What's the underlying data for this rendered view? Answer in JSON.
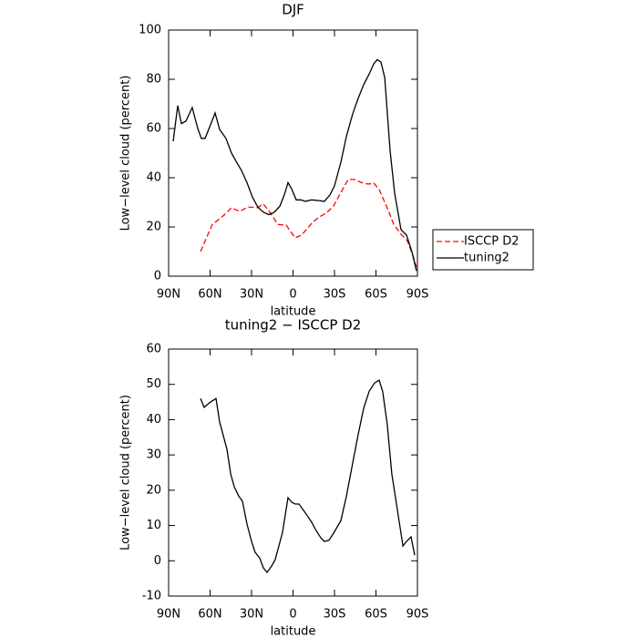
{
  "chart_data": [
    {
      "type": "line",
      "title": "DJF",
      "x_label": "latitude",
      "y_label": "Low−level cloud (percent)",
      "xlim": [
        90,
        -90
      ],
      "xticks": [
        {
          "value": 90,
          "label": "90N"
        },
        {
          "value": 60,
          "label": "60N"
        },
        {
          "value": 30,
          "label": "30N"
        },
        0,
        {
          "value": -30,
          "label": "30S"
        },
        {
          "value": -60,
          "label": "60S"
        },
        {
          "value": -90,
          "label": "90S"
        }
      ],
      "ylim": [
        0,
        100
      ],
      "yticks": [
        0,
        20,
        40,
        60,
        80,
        100
      ],
      "legend": "outside-right",
      "series": [
        {
          "name": "ISCCP D2",
          "color": "#ff0000",
          "linestyle": "dashed",
          "x": [
            66.9,
            63,
            58.4,
            53.1,
            49.1,
            44.5,
            38.6,
            32.6,
            26,
            21.4,
            16.8,
            10.9,
            4.9,
            1.6,
            -1.6,
            -6.2,
            -10.2,
            -14.2,
            -18.8,
            -24,
            -29.3,
            -34.6,
            -39.9,
            -44.5,
            -49.1,
            -54.4,
            -58.4,
            -62.3,
            -67.6,
            -72.9,
            -78.1,
            -82.7,
            -86.7,
            -89.3
          ],
          "values": [
            10,
            15,
            21,
            23.3,
            25.2,
            27.8,
            26.3,
            28.1,
            27.8,
            29.3,
            26,
            21,
            20.7,
            18,
            15.6,
            16.7,
            19.3,
            21.9,
            24,
            25.6,
            28.5,
            34,
            39.3,
            39.3,
            38.1,
            37.4,
            37.8,
            35.2,
            28.5,
            21,
            17,
            14.4,
            8.5,
            3.7
          ]
        },
        {
          "name": "tuning2",
          "color": "#000000",
          "linestyle": "solid",
          "x": [
            86.7,
            83.4,
            80.8,
            77.5,
            72.9,
            68.9,
            66.3,
            63.6,
            59.7,
            56.4,
            53.1,
            48.5,
            44.5,
            41.2,
            37.3,
            33.3,
            29.3,
            25.4,
            21.4,
            17.4,
            13.5,
            9.5,
            6.3,
            3.6,
            1,
            -2.3,
            -5.6,
            -8.9,
            -13.5,
            -18.8,
            -22.7,
            -26.7,
            -30,
            -34.6,
            -38.6,
            -43.2,
            -47.1,
            -51.1,
            -55.1,
            -58.4,
            -61,
            -63.6,
            -66.3,
            -70.2,
            -73.5,
            -78.1,
            -82.1,
            -86,
            -89.3
          ],
          "values": [
            54.8,
            69.3,
            62,
            63,
            68.5,
            60,
            56,
            56,
            61.5,
            66.3,
            59.6,
            56,
            50,
            46.7,
            43,
            38,
            32,
            28,
            26,
            25,
            26,
            28.5,
            33,
            38,
            35.5,
            31,
            31,
            30.4,
            31,
            30.7,
            30.4,
            33,
            36.7,
            46.3,
            56.7,
            66,
            72.2,
            77.8,
            82.2,
            86.3,
            88,
            87,
            80.7,
            51,
            33.7,
            18.9,
            16.7,
            10,
            2.2
          ]
        }
      ]
    },
    {
      "type": "line",
      "title": "tuning2 − ISCCP D2",
      "x_label": "latitude",
      "y_label": "Low−level cloud (percent)",
      "xlim": [
        90,
        -90
      ],
      "xticks": [
        {
          "value": 90,
          "label": "90N"
        },
        {
          "value": 60,
          "label": "60N"
        },
        {
          "value": 30,
          "label": "30N"
        },
        0,
        {
          "value": -30,
          "label": "30S"
        },
        {
          "value": -60,
          "label": "60S"
        },
        {
          "value": -90,
          "label": "90S"
        }
      ],
      "ylim": [
        -10,
        60
      ],
      "yticks": [
        -10,
        0,
        10,
        20,
        30,
        40,
        50,
        60
      ],
      "series": [
        {
          "color": "#000000",
          "linestyle": "solid",
          "x": [
            66.9,
            64.3,
            60.3,
            55.7,
            53.1,
            47.8,
            45.1,
            42.5,
            39.2,
            36.6,
            33.3,
            30,
            27.4,
            24.1,
            21.4,
            18.8,
            15.5,
            12.9,
            10.2,
            7.6,
            3.6,
            1,
            -1.6,
            -4.3,
            -9.6,
            -13.5,
            -16.2,
            -20.1,
            -22.7,
            -26,
            -29.3,
            -34.6,
            -38.6,
            -42.5,
            -47.1,
            -51.1,
            -55.1,
            -59,
            -62.3,
            -64.9,
            -68.2,
            -71.5,
            -74.8,
            -79.5,
            -82.1,
            -85.4,
            -88
          ],
          "values": [
            46,
            43.5,
            44.8,
            46,
            39.3,
            31.6,
            24.6,
            21,
            18.3,
            16.9,
            10.4,
            5.5,
            2.4,
            0.8,
            -2,
            -3.3,
            -1.5,
            0.3,
            4.2,
            8.1,
            17.9,
            16.6,
            16.1,
            16.1,
            13.2,
            10.9,
            8.9,
            6.5,
            5.5,
            5.8,
            7.8,
            11.4,
            18.2,
            26.4,
            35.7,
            43.2,
            48.1,
            50.4,
            51.2,
            47.9,
            38.6,
            24.6,
            16.3,
            4.2,
            5.5,
            6.8,
            1.6
          ]
        }
      ]
    }
  ]
}
